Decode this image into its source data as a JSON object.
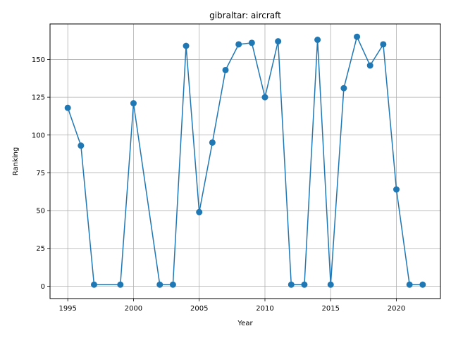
{
  "chart_data": {
    "type": "line",
    "title": "gibraltar: aircraft",
    "xlabel": "Year",
    "ylabel": "Ranking",
    "xlim": [
      1993.65,
      1995.0
    ],
    "ylim": [
      -8.2,
      173.5
    ],
    "xticks": [
      1995,
      2000,
      2005,
      2010,
      2015,
      2020
    ],
    "yticks": [
      0,
      25,
      50,
      75,
      100,
      125,
      150
    ],
    "grid": true,
    "color": "#1f77b4",
    "series": [
      {
        "x": [
          1995,
          1996,
          1997,
          1999,
          2000,
          2002,
          2003,
          2004,
          2005,
          2006,
          2007,
          2008,
          2009,
          2010,
          2011,
          2012,
          2013,
          2014,
          2015,
          2016,
          2017,
          2018,
          2019,
          2020,
          2021,
          2022
        ],
        "values": [
          118,
          93,
          1,
          1,
          121,
          1,
          1,
          159,
          49,
          95,
          143,
          160,
          161,
          125,
          162,
          1,
          1,
          163,
          1,
          131,
          165,
          146,
          160,
          64,
          1,
          1
        ]
      }
    ]
  }
}
